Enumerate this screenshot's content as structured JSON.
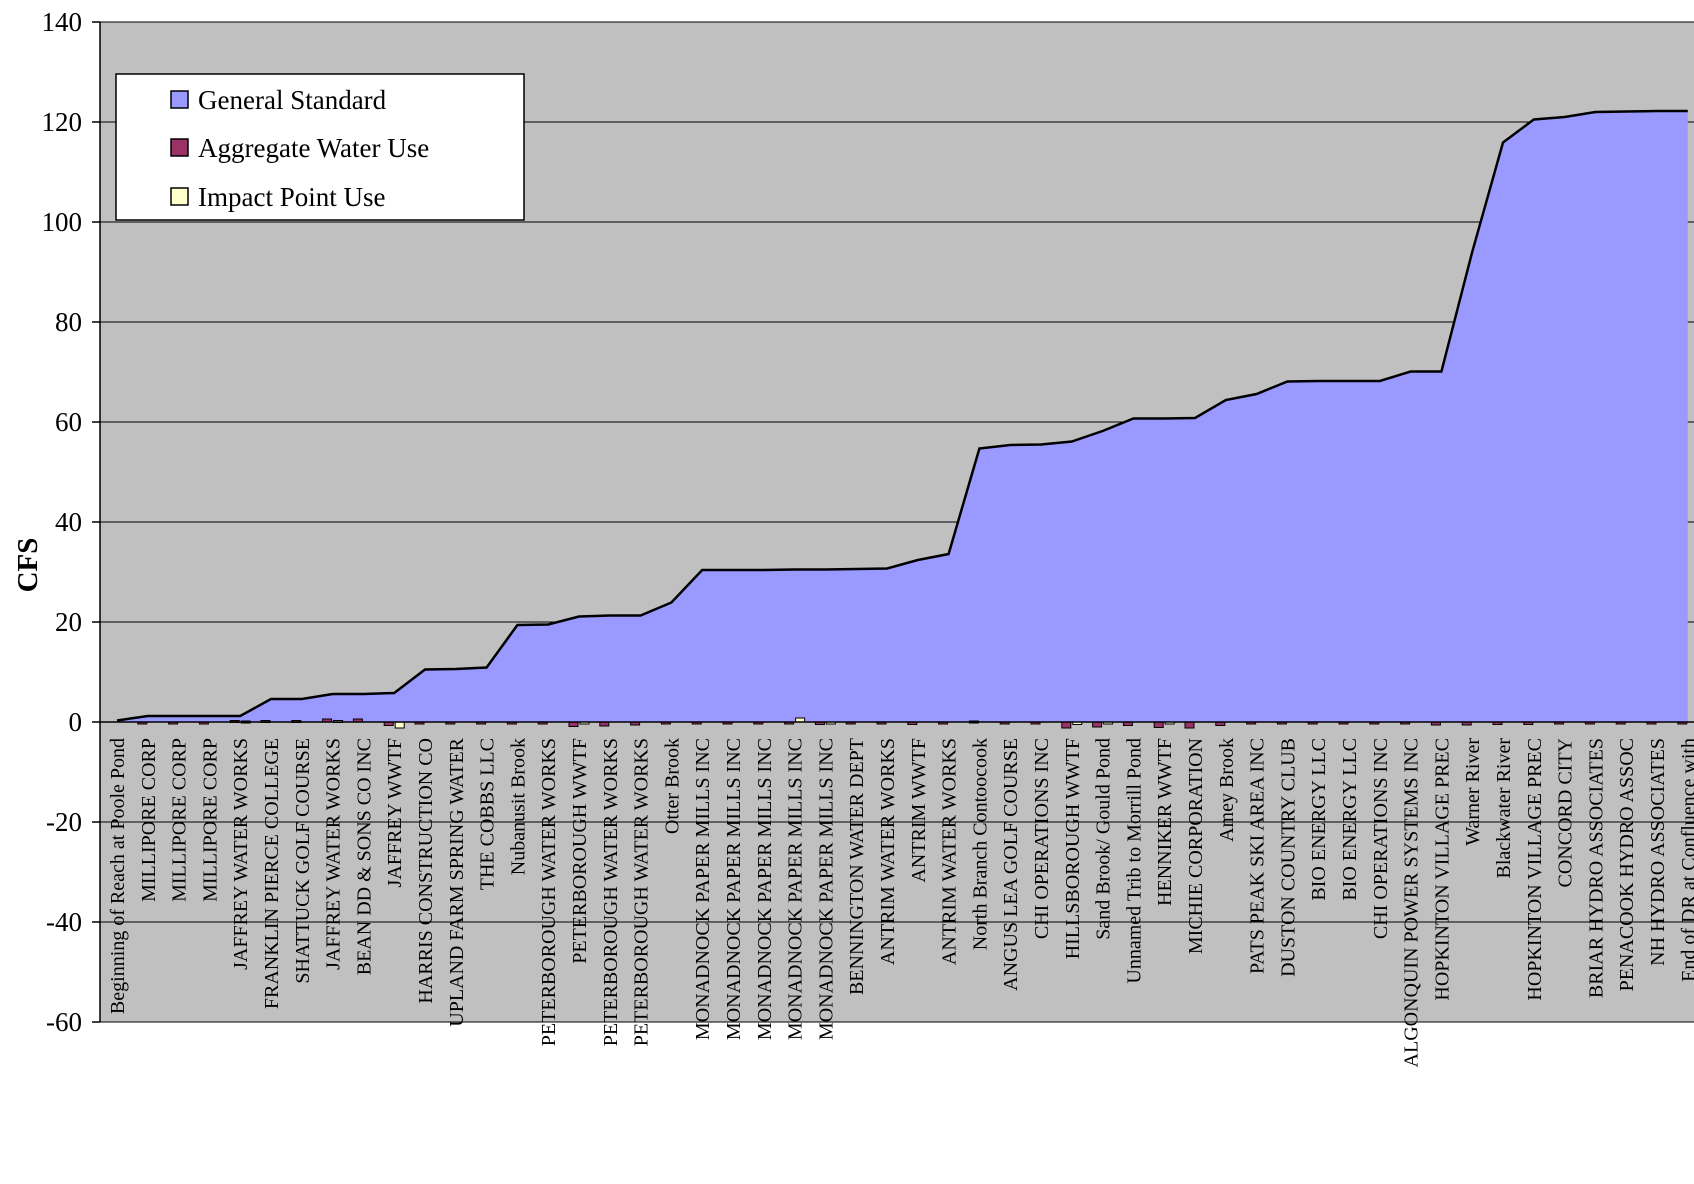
{
  "chart_data": {
    "type": "area",
    "title": "",
    "xlabel": "",
    "ylabel": "CFS",
    "ylim": [
      -60,
      140
    ],
    "yticks": [
      "140",
      "120",
      "100",
      "80",
      "60",
      "40",
      "20",
      "0",
      "-20",
      "-40",
      "-60"
    ],
    "grid": true,
    "legend_position": "top-left",
    "colors": {
      "plot_background": "#c0c0c0",
      "general_standard": "#9999ff",
      "aggregate_water_use": "#993366",
      "impact_point_use": "#ffffcc",
      "outline": "#000000"
    },
    "categories": [
      "Beginning of Reach at Poole Pond",
      "MILLIPORE CORP",
      "MILLIPORE CORP",
      "MILLIPORE CORP",
      "JAFFREY WATER WORKS",
      "FRANKLIN PIERCE COLLEGE",
      "SHATTUCK GOLF COURSE",
      "JAFFREY WATER WORKS",
      "BEAN DD & SONS CO INC",
      "JAFFREY WWTF",
      "HARRIS CONSTRUCTION CO",
      "UPLAND FARM SPRING WATER",
      "THE COBBS LLC",
      "Nubanusit Brook",
      "PETERBOROUGH WATER WORKS",
      "PETERBOROUGH WWTF",
      "PETERBOROUGH WATER WORKS",
      "PETERBOROUGH WATER WORKS",
      "Otter Brook",
      "MONADNOCK PAPER MILLS INC",
      "MONADNOCK PAPER MILLS INC",
      "MONADNOCK PAPER MILLS INC",
      "MONADNOCK PAPER MILLS INC",
      "MONADNOCK PAPER MILLS INC",
      "BENNINGTON WATER DEPT",
      "ANTRIM WATER WORKS",
      "ANTRIM WWTF",
      "ANTRIM WATER WORKS",
      "North Branch Contoocook",
      "ANGUS LEA GOLF COURSE",
      "CHI OPERATIONS INC",
      "HILLSBOROUGH WWTF",
      "Sand Brook/ Gould Pond",
      "Unnamed Trib to Morrill Pond",
      "HENNIKER WWTF",
      "MICHIE CORPORATION",
      "Amey Brook",
      "PATS PEAK SKI AREA INC",
      "DUSTON COUNTRY CLUB",
      "BIO ENERGY LLC",
      "BIO ENERGY LLC",
      "CHI OPERATIONS INC",
      "ALGONQUIN POWER SYSTEMS INC",
      "HOPKINTON VILLAGE PREC",
      "Warner River",
      "Blackwater River",
      "HOPKINTON VILLAGE PREC",
      "CONCORD CITY",
      "BRIAR HYDRO ASSOCIATES",
      "PENACOOK HYDRO ASSOC",
      "NH HYDRO ASSOCIATES",
      "End of DR at Confluence with"
    ],
    "series": [
      {
        "name": "General Standard",
        "values": [
          0.3,
          1.2,
          1.2,
          1.2,
          1.2,
          4.6,
          4.6,
          5.6,
          5.6,
          5.8,
          10.5,
          10.6,
          10.9,
          19.4,
          19.5,
          21.1,
          21.3,
          21.3,
          23.9,
          30.4,
          30.4,
          30.4,
          30.5,
          30.5,
          30.6,
          30.7,
          32.4,
          33.6,
          54.7,
          55.4,
          55.5,
          56.1,
          58.2,
          60.7,
          60.7,
          60.8,
          64.4,
          65.6,
          68.1,
          68.2,
          68.2,
          68.2,
          70.1,
          70.1,
          94.0,
          115.9,
          120.5,
          121.0,
          122.0,
          122.1,
          122.2,
          122.2
        ]
      },
      {
        "name": "Aggregate Water Use",
        "values": [
          0,
          -0.2,
          -0.2,
          -0.2,
          0.3,
          0.3,
          0.3,
          0.6,
          0.6,
          -0.7,
          -0.4,
          -0.4,
          -0.4,
          -0.3,
          -0.3,
          -0.9,
          -0.8,
          -0.6,
          -0.4,
          -0.4,
          -0.4,
          -0.4,
          -0.4,
          -0.5,
          -0.4,
          -0.3,
          -0.5,
          -0.4,
          0.2,
          -0.2,
          -0.2,
          -1.2,
          -1.0,
          -0.7,
          -1.1,
          -1.2,
          -0.7,
          -0.4,
          -0.4,
          -0.3,
          -0.3,
          -0.3,
          -0.3,
          -0.6,
          -0.6,
          -0.5,
          -0.5,
          -0.4,
          -0.4,
          -0.4,
          -0.4,
          -0.4
        ]
      },
      {
        "name": "Impact Point Use",
        "values": [
          0,
          0,
          0,
          0,
          0.2,
          0,
          0,
          0.3,
          0,
          -1.2,
          0,
          0,
          0,
          0,
          0,
          -0.3,
          0,
          0,
          0,
          0,
          0,
          0,
          0.8,
          -0.3,
          0,
          0,
          0,
          0,
          0,
          0,
          0,
          -0.5,
          -0.4,
          0,
          -0.3,
          0,
          0,
          0,
          0,
          0,
          0,
          0,
          0,
          0,
          0,
          0,
          0,
          0,
          0,
          0,
          0,
          0
        ]
      }
    ]
  }
}
